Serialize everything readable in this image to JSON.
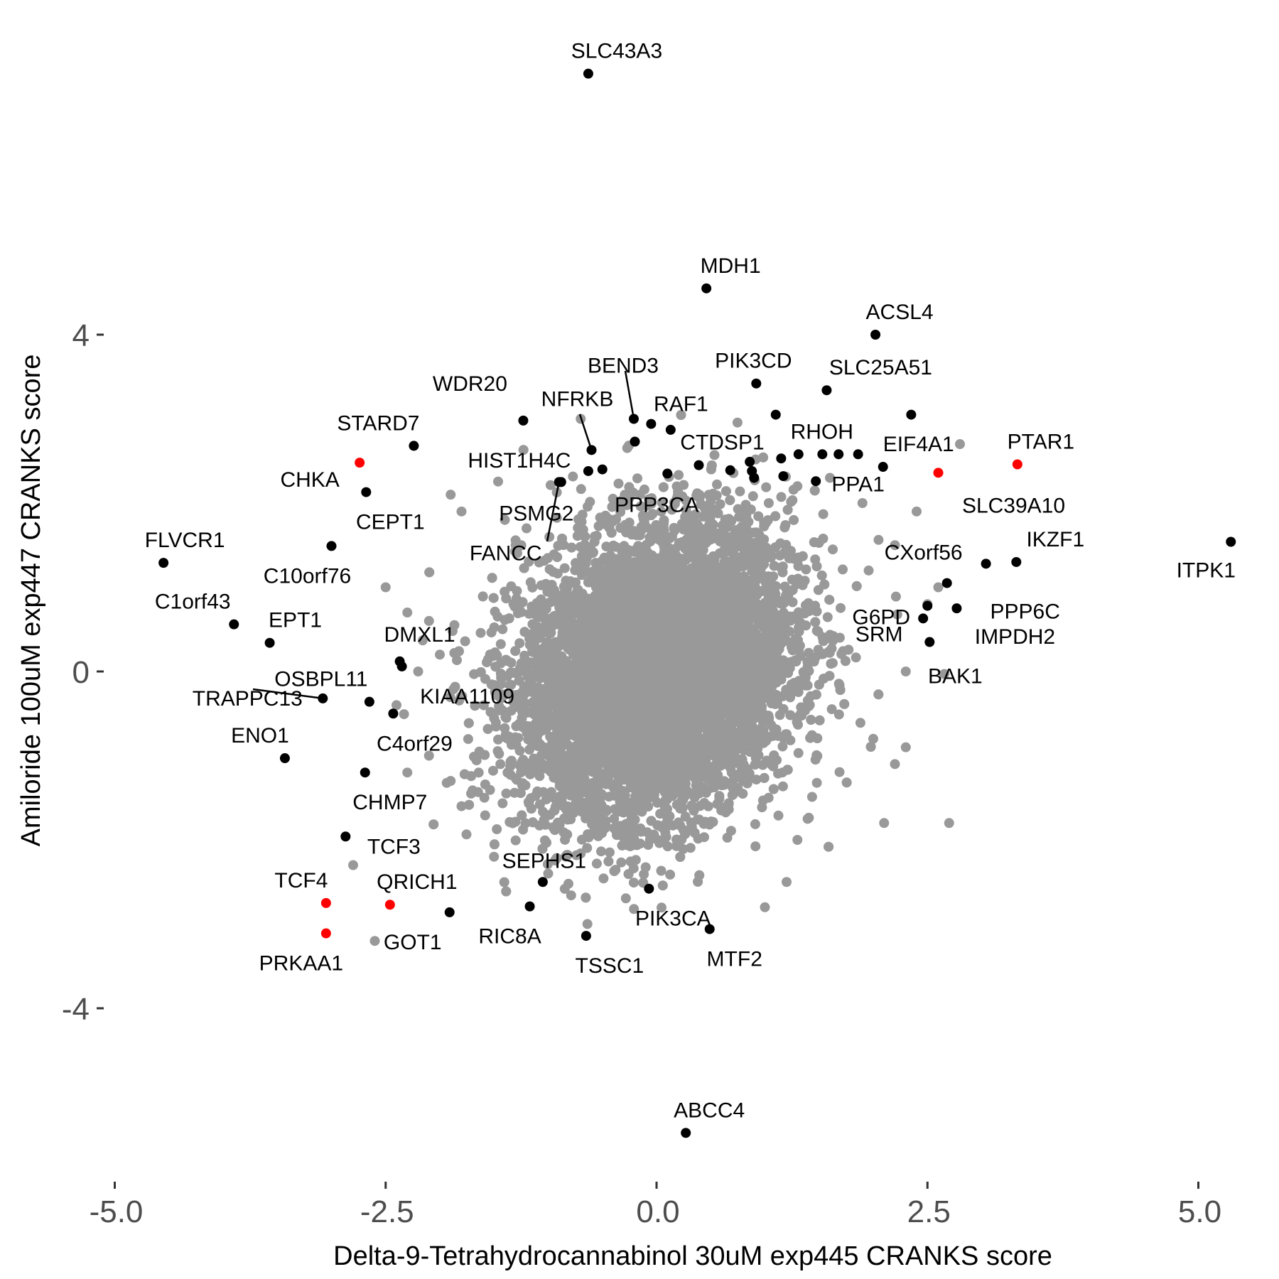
{
  "chart_data": {
    "type": "scatter",
    "title": "",
    "xlabel": "Delta-9-Tetrahydrocannabinol 30uM exp445 CRANKS score",
    "ylabel": "Amiloride 100uM exp447 CRANKS score",
    "xlim": [
      -5.0,
      5.3
    ],
    "ylim": [
      -6.0,
      7.2
    ],
    "x_ticks": [
      -5.0,
      -2.5,
      0.0,
      2.5,
      5.0
    ],
    "x_tick_labels": [
      "-5.0",
      "-2.5",
      "0.0",
      "2.5",
      "5.0"
    ],
    "y_ticks": [
      -4,
      0,
      4
    ],
    "y_tick_labels": [
      "-4",
      "0",
      "4"
    ],
    "grid": false,
    "colors": {
      "background": "#ffffff",
      "point": "#999999",
      "labeled": "#000000",
      "highlight": "#ff0000",
      "tick_text": "#4d4d4d"
    },
    "background_cloud": {
      "n": 9000,
      "x_sd": 0.62,
      "y_sd": 0.85,
      "rho": 0.2,
      "color": "#999999"
    },
    "background_points": [
      [
        -1.9,
        2.1
      ],
      [
        -1.8,
        1.9
      ],
      [
        -1.4,
        1.8
      ],
      [
        -1.3,
        1.5
      ],
      [
        -1.2,
        1.7
      ],
      [
        -0.7,
        3.0
      ],
      [
        -2.5,
        1.0
      ],
      [
        -2.3,
        0.7
      ],
      [
        -2.1,
        0.6
      ],
      [
        -2.0,
        0.2
      ],
      [
        -2.2,
        0.0
      ],
      [
        -2.4,
        -0.4
      ],
      [
        -2.3,
        -1.2
      ],
      [
        -2.1,
        -1.0
      ],
      [
        -1.9,
        -1.3
      ],
      [
        -1.8,
        -1.6
      ],
      [
        -2.8,
        -2.3
      ],
      [
        -2.6,
        -3.2
      ],
      [
        -1.5,
        -2.2
      ],
      [
        -1.0,
        -2.4
      ],
      [
        1.3,
        2.2
      ],
      [
        1.6,
        2.3
      ],
      [
        1.9,
        2.0
      ],
      [
        2.2,
        1.5
      ],
      [
        2.4,
        1.9
      ],
      [
        2.6,
        1.0
      ],
      [
        2.5,
        0.8
      ],
      [
        2.3,
        0.0
      ],
      [
        2.0,
        -0.8
      ],
      [
        2.3,
        -0.9
      ],
      [
        2.2,
        -1.1
      ],
      [
        2.1,
        -1.8
      ],
      [
        2.7,
        -1.8
      ],
      [
        1.3,
        -2.0
      ],
      [
        1.0,
        -2.8
      ],
      [
        1.2,
        -2.5
      ],
      [
        2.8,
        2.7
      ]
    ],
    "labeled_points": [
      {
        "gene": "SLC43A3",
        "x": -0.63,
        "y": 7.1,
        "color": "#000000"
      },
      {
        "gene": "MDH1",
        "x": 0.46,
        "y": 4.55,
        "color": "#000000"
      },
      {
        "gene": "ACSL4",
        "x": 2.02,
        "y": 4.0,
        "color": "#000000"
      },
      {
        "gene": "PIK3CD",
        "x": 0.92,
        "y": 3.42,
        "color": "#000000"
      },
      {
        "gene": "SLC25A51",
        "x": 1.57,
        "y": 3.34,
        "color": "#000000"
      },
      {
        "gene": "BEND3",
        "x": -0.21,
        "y": 3.0,
        "color": "#000000"
      },
      {
        "gene": "RAF1",
        "x": -0.05,
        "y": 2.94,
        "color": "#000000"
      },
      {
        "gene": "WDR20",
        "x": -1.23,
        "y": 2.98,
        "color": "#000000"
      },
      {
        "gene": "NFRKB",
        "x": -0.6,
        "y": 2.63,
        "color": "#000000"
      },
      {
        "gene": "STARD7",
        "x": -2.24,
        "y": 2.68,
        "color": "#000000"
      },
      {
        "gene": "HIST1H4C",
        "x": -0.63,
        "y": 2.38,
        "color": "#000000"
      },
      {
        "gene": "CHKA",
        "x": -2.74,
        "y": 2.48,
        "color": "#ff0000"
      },
      {
        "gene": "CEPT1",
        "x": -2.68,
        "y": 2.13,
        "color": "#000000"
      },
      {
        "gene": "CTDSP1",
        "x": 0.39,
        "y": 2.45,
        "color": "#000000"
      },
      {
        "gene": "RHOH",
        "x": 1.31,
        "y": 2.58,
        "color": "#000000"
      },
      {
        "gene": "EIF4A1",
        "x": 2.09,
        "y": 2.43,
        "color": "#000000"
      },
      {
        "gene": "PTAR1",
        "x": 3.33,
        "y": 2.46,
        "color": "#ff0000"
      },
      {
        "gene": "SLC39A10",
        "x": 2.6,
        "y": 2.36,
        "color": "#ff0000"
      },
      {
        "gene": "PPP3CA",
        "x": 0.1,
        "y": 2.35,
        "color": "#000000"
      },
      {
        "gene": "PPA1",
        "x": 1.86,
        "y": 2.58,
        "color": "#000000"
      },
      {
        "gene": "PSMG2",
        "x": -0.88,
        "y": 2.25,
        "color": "#000000"
      },
      {
        "gene": "FANCC",
        "x": -0.9,
        "y": 2.25,
        "color": "#000000"
      },
      {
        "gene": "FLVCR1",
        "x": -4.55,
        "y": 1.29,
        "color": "#000000"
      },
      {
        "gene": "C10orf76",
        "x": -3.0,
        "y": 1.49,
        "color": "#000000"
      },
      {
        "gene": "ITPK1",
        "x": 5.3,
        "y": 1.54,
        "color": "#000000"
      },
      {
        "gene": "IKZF1",
        "x": 3.32,
        "y": 1.3,
        "color": "#000000"
      },
      {
        "gene": "CXorf56",
        "x": 3.04,
        "y": 1.28,
        "color": "#000000"
      },
      {
        "gene": "PPP6C",
        "x": 2.68,
        "y": 1.05,
        "color": "#000000"
      },
      {
        "gene": "G6PD",
        "x": 2.5,
        "y": 0.78,
        "color": "#000000"
      },
      {
        "gene": "IMPDH2",
        "x": 2.77,
        "y": 0.75,
        "color": "#000000"
      },
      {
        "gene": "SRM",
        "x": 2.46,
        "y": 0.63,
        "color": "#000000"
      },
      {
        "gene": "BAK1",
        "x": 2.52,
        "y": 0.35,
        "color": "#000000"
      },
      {
        "gene": "C1orf43",
        "x": -3.9,
        "y": 0.56,
        "color": "#000000"
      },
      {
        "gene": "EPT1",
        "x": -3.57,
        "y": 0.34,
        "color": "#000000"
      },
      {
        "gene": "DMXL1",
        "x": -2.37,
        "y": 0.12,
        "color": "#000000"
      },
      {
        "gene": "KIAA1109",
        "x": -2.35,
        "y": 0.06,
        "color": "#000000"
      },
      {
        "gene": "OSBPL11",
        "x": -2.65,
        "y": -0.36,
        "color": "#000000"
      },
      {
        "gene": "TRAPPC13",
        "x": -3.08,
        "y": -0.32,
        "color": "#000000"
      },
      {
        "gene": "C4orf29",
        "x": -2.43,
        "y": -0.5,
        "color": "#000000"
      },
      {
        "gene": "ENO1",
        "x": -3.43,
        "y": -1.03,
        "color": "#000000"
      },
      {
        "gene": "CHMP7",
        "x": -2.69,
        "y": -1.2,
        "color": "#000000"
      },
      {
        "gene": "TCF3",
        "x": -2.87,
        "y": -1.96,
        "color": "#000000"
      },
      {
        "gene": "SEPHS1",
        "x": -1.05,
        "y": -2.5,
        "color": "#000000"
      },
      {
        "gene": "PIK3CA",
        "x": -0.07,
        "y": -2.58,
        "color": "#000000"
      },
      {
        "gene": "TCF4",
        "x": -3.05,
        "y": -2.75,
        "color": "#ff0000"
      },
      {
        "gene": "QRICH1",
        "x": -2.46,
        "y": -2.77,
        "color": "#ff0000"
      },
      {
        "gene": "GOT1",
        "x": -1.91,
        "y": -2.86,
        "color": "#000000"
      },
      {
        "gene": "RIC8A",
        "x": -1.17,
        "y": -2.79,
        "color": "#000000"
      },
      {
        "gene": "PRKAA1",
        "x": -3.05,
        "y": -3.11,
        "color": "#ff0000"
      },
      {
        "gene": "TSSC1",
        "x": -0.65,
        "y": -3.14,
        "color": "#000000"
      },
      {
        "gene": "MTF2",
        "x": 0.49,
        "y": -3.06,
        "color": "#000000"
      },
      {
        "gene": "ABCC4",
        "x": 0.27,
        "y": -5.48,
        "color": "#000000"
      }
    ],
    "extra_highlight_points": [
      [
        0.68,
        2.39
      ],
      [
        0.86,
        2.49
      ],
      [
        0.88,
        2.38
      ],
      [
        0.9,
        2.3
      ],
      [
        1.15,
        2.53
      ],
      [
        1.17,
        2.32
      ],
      [
        1.53,
        2.58
      ],
      [
        1.68,
        2.58
      ],
      [
        1.47,
        2.26
      ],
      [
        -0.5,
        2.4
      ],
      [
        1.1,
        3.05
      ],
      [
        2.35,
        3.05
      ],
      [
        0.13,
        2.87
      ],
      [
        -0.2,
        2.73
      ]
    ]
  }
}
